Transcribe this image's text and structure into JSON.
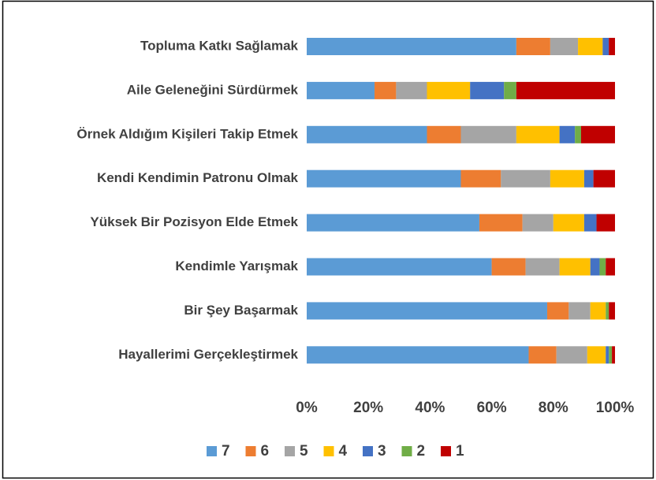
{
  "chart_data": {
    "type": "stacked-bar-horizontal",
    "categories": [
      "Topluma Katkı Sağlamak",
      "Aile Geleneğini Sürdürmek",
      "Örnek Aldığım Kişileri Takip Etmek",
      "Kendi Kendimin Patronu Olmak",
      "Yüksek Bir Pozisyon Elde Etmek",
      "Kendimle Yarışmak",
      "Bir Şey Başarmak",
      "Hayallerimi Gerçekleştirmek"
    ],
    "series": [
      {
        "name": "7",
        "color": "#5b9bd5",
        "values": [
          68,
          22,
          39,
          50,
          56,
          60,
          78,
          72
        ]
      },
      {
        "name": "6",
        "color": "#ed7d31",
        "values": [
          11,
          7,
          11,
          13,
          14,
          11,
          7,
          9
        ]
      },
      {
        "name": "5",
        "color": "#a5a5a5",
        "values": [
          9,
          10,
          18,
          16,
          10,
          11,
          7,
          10
        ]
      },
      {
        "name": "4",
        "color": "#ffc000",
        "values": [
          8,
          14,
          14,
          11,
          10,
          10,
          5,
          6
        ]
      },
      {
        "name": "3",
        "color": "#4472c4",
        "values": [
          2,
          11,
          5,
          3,
          4,
          3,
          0,
          1
        ]
      },
      {
        "name": "2",
        "color": "#70ad47",
        "values": [
          0,
          4,
          2,
          0,
          0,
          2,
          1,
          1
        ]
      },
      {
        "name": "1",
        "color": "#c00000",
        "values": [
          2,
          32,
          11,
          7,
          6,
          3,
          2,
          1
        ]
      }
    ],
    "xlim": [
      0,
      100
    ],
    "xticks": [
      {
        "value": 0,
        "label": "0%"
      },
      {
        "value": 20,
        "label": "20%"
      },
      {
        "value": 40,
        "label": "40%"
      },
      {
        "value": 60,
        "label": "60%"
      },
      {
        "value": 80,
        "label": "80%"
      },
      {
        "value": 100,
        "label": "100%"
      }
    ],
    "legend": "bottom"
  }
}
